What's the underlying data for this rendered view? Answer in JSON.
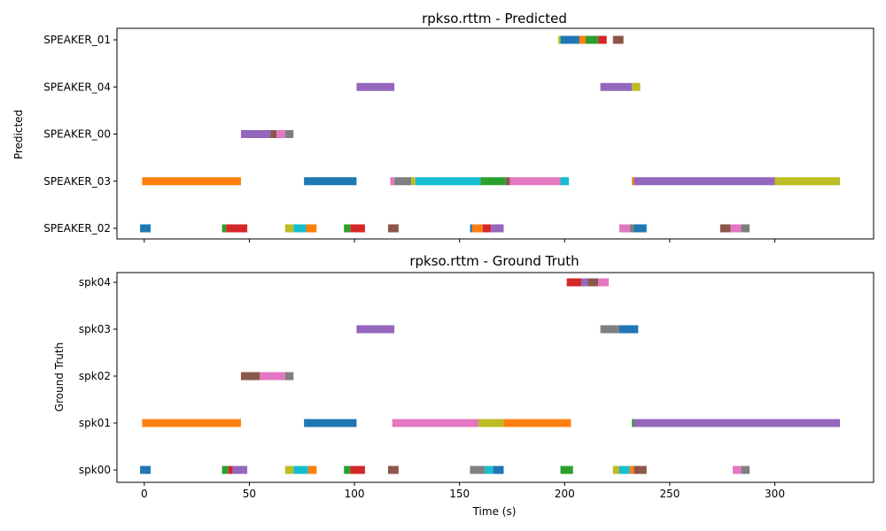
{
  "palette": {
    "blue": "#1f77b4",
    "orange": "#ff7f0e",
    "green": "#2ca02c",
    "red": "#d62728",
    "purple": "#9467bd",
    "brown": "#8c564b",
    "pink": "#e377c2",
    "gray": "#7f7f7f",
    "olive": "#bcbd22",
    "cyan": "#17becf"
  },
  "chart_data": [
    {
      "type": "timeline",
      "title": "rpkso.rttm - Predicted",
      "ylabel": "Predicted",
      "xlabel": "",
      "xlim": [
        -13,
        347
      ],
      "xticks": [
        0,
        50,
        100,
        150,
        200,
        250,
        300
      ],
      "show_xtick_labels": false,
      "grid": false,
      "legend": "none",
      "rows": [
        {
          "label": "SPEAKER_01",
          "segments": [
            {
              "start": 197,
              "end": 198,
              "color": "olive"
            },
            {
              "start": 198,
              "end": 207,
              "color": "blue"
            },
            {
              "start": 207,
              "end": 210,
              "color": "orange"
            },
            {
              "start": 210,
              "end": 216,
              "color": "green"
            },
            {
              "start": 216,
              "end": 220,
              "color": "red"
            },
            {
              "start": 223,
              "end": 228,
              "color": "brown"
            }
          ]
        },
        {
          "label": "SPEAKER_04",
          "segments": [
            {
              "start": 101,
              "end": 119,
              "color": "purple"
            },
            {
              "start": 217,
              "end": 232,
              "color": "purple"
            },
            {
              "start": 232,
              "end": 236,
              "color": "olive"
            }
          ]
        },
        {
          "label": "SPEAKER_00",
          "segments": [
            {
              "start": 46,
              "end": 60,
              "color": "purple"
            },
            {
              "start": 60,
              "end": 63,
              "color": "brown"
            },
            {
              "start": 63,
              "end": 67,
              "color": "pink"
            },
            {
              "start": 67,
              "end": 71,
              "color": "gray"
            }
          ]
        },
        {
          "label": "SPEAKER_03",
          "segments": [
            {
              "start": -1,
              "end": 46,
              "color": "orange"
            },
            {
              "start": 76,
              "end": 101,
              "color": "blue"
            },
            {
              "start": 117,
              "end": 119,
              "color": "pink"
            },
            {
              "start": 119,
              "end": 127,
              "color": "gray"
            },
            {
              "start": 127,
              "end": 129,
              "color": "olive"
            },
            {
              "start": 129,
              "end": 160,
              "color": "cyan"
            },
            {
              "start": 160,
              "end": 172,
              "color": "green"
            },
            {
              "start": 172,
              "end": 174,
              "color": "brown"
            },
            {
              "start": 174,
              "end": 198,
              "color": "pink"
            },
            {
              "start": 198,
              "end": 202,
              "color": "cyan"
            },
            {
              "start": 232,
              "end": 233,
              "color": "orange"
            },
            {
              "start": 233,
              "end": 300,
              "color": "purple"
            },
            {
              "start": 300,
              "end": 331,
              "color": "olive"
            }
          ]
        },
        {
          "label": "SPEAKER_02",
          "segments": [
            {
              "start": -2,
              "end": 3,
              "color": "blue"
            },
            {
              "start": 37,
              "end": 39,
              "color": "green"
            },
            {
              "start": 39,
              "end": 49,
              "color": "red"
            },
            {
              "start": 67,
              "end": 71,
              "color": "olive"
            },
            {
              "start": 71,
              "end": 77,
              "color": "cyan"
            },
            {
              "start": 77,
              "end": 82,
              "color": "orange"
            },
            {
              "start": 95,
              "end": 98,
              "color": "green"
            },
            {
              "start": 98,
              "end": 105,
              "color": "red"
            },
            {
              "start": 116,
              "end": 121,
              "color": "brown"
            },
            {
              "start": 155,
              "end": 156,
              "color": "blue"
            },
            {
              "start": 156,
              "end": 161,
              "color": "orange"
            },
            {
              "start": 161,
              "end": 165,
              "color": "red"
            },
            {
              "start": 165,
              "end": 171,
              "color": "purple"
            },
            {
              "start": 226,
              "end": 231,
              "color": "pink"
            },
            {
              "start": 231,
              "end": 233,
              "color": "gray"
            },
            {
              "start": 233,
              "end": 239,
              "color": "blue"
            },
            {
              "start": 274,
              "end": 279,
              "color": "brown"
            },
            {
              "start": 279,
              "end": 284,
              "color": "pink"
            },
            {
              "start": 284,
              "end": 288,
              "color": "gray"
            }
          ]
        }
      ]
    },
    {
      "type": "timeline",
      "title": "rpkso.rttm - Ground Truth",
      "ylabel": "Ground Truth",
      "xlabel": "Time (s)",
      "xlim": [
        -13,
        347
      ],
      "xticks": [
        0,
        50,
        100,
        150,
        200,
        250,
        300
      ],
      "show_xtick_labels": true,
      "grid": false,
      "legend": "none",
      "rows": [
        {
          "label": "spk04",
          "segments": [
            {
              "start": 201,
              "end": 208,
              "color": "red"
            },
            {
              "start": 208,
              "end": 211,
              "color": "purple"
            },
            {
              "start": 211,
              "end": 216,
              "color": "brown"
            },
            {
              "start": 216,
              "end": 221,
              "color": "pink"
            }
          ]
        },
        {
          "label": "spk03",
          "segments": [
            {
              "start": 101,
              "end": 119,
              "color": "purple"
            },
            {
              "start": 217,
              "end": 226,
              "color": "gray"
            },
            {
              "start": 226,
              "end": 235,
              "color": "blue"
            }
          ]
        },
        {
          "label": "spk02",
          "segments": [
            {
              "start": 46,
              "end": 55,
              "color": "brown"
            },
            {
              "start": 55,
              "end": 67,
              "color": "pink"
            },
            {
              "start": 67,
              "end": 71,
              "color": "gray"
            }
          ]
        },
        {
          "label": "spk01",
          "segments": [
            {
              "start": -1,
              "end": 46,
              "color": "orange"
            },
            {
              "start": 76,
              "end": 101,
              "color": "blue"
            },
            {
              "start": 118,
              "end": 159,
              "color": "pink"
            },
            {
              "start": 159,
              "end": 171,
              "color": "olive"
            },
            {
              "start": 171,
              "end": 203,
              "color": "orange"
            },
            {
              "start": 232,
              "end": 233,
              "color": "green"
            },
            {
              "start": 233,
              "end": 331,
              "color": "purple"
            }
          ]
        },
        {
          "label": "spk00",
          "segments": [
            {
              "start": -2,
              "end": 3,
              "color": "blue"
            },
            {
              "start": 37,
              "end": 40,
              "color": "green"
            },
            {
              "start": 40,
              "end": 42,
              "color": "red"
            },
            {
              "start": 42,
              "end": 49,
              "color": "purple"
            },
            {
              "start": 67,
              "end": 71,
              "color": "olive"
            },
            {
              "start": 71,
              "end": 78,
              "color": "cyan"
            },
            {
              "start": 78,
              "end": 82,
              "color": "orange"
            },
            {
              "start": 95,
              "end": 98,
              "color": "green"
            },
            {
              "start": 98,
              "end": 105,
              "color": "red"
            },
            {
              "start": 116,
              "end": 121,
              "color": "brown"
            },
            {
              "start": 155,
              "end": 162,
              "color": "gray"
            },
            {
              "start": 162,
              "end": 166,
              "color": "cyan"
            },
            {
              "start": 166,
              "end": 171,
              "color": "blue"
            },
            {
              "start": 198,
              "end": 204,
              "color": "green"
            },
            {
              "start": 223,
              "end": 226,
              "color": "olive"
            },
            {
              "start": 226,
              "end": 231,
              "color": "cyan"
            },
            {
              "start": 231,
              "end": 233,
              "color": "orange"
            },
            {
              "start": 233,
              "end": 239,
              "color": "brown"
            },
            {
              "start": 280,
              "end": 284,
              "color": "pink"
            },
            {
              "start": 284,
              "end": 288,
              "color": "gray"
            }
          ]
        }
      ]
    }
  ]
}
